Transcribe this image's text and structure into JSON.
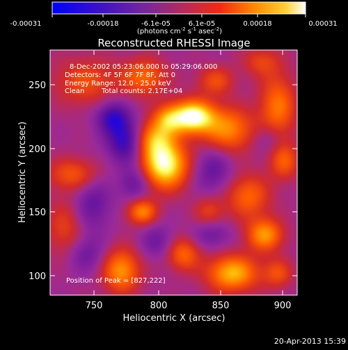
{
  "chart_data": {
    "type": "heatmap",
    "title": "Reconstructed RHESSI Image",
    "xlabel": "Heliocentric X (arcsec)",
    "ylabel": "Heliocentric Y (arcsec)",
    "xlim": [
      717,
      908
    ],
    "ylim": [
      83,
      274
    ],
    "x_ticks": [
      "750",
      "800",
      "850",
      "900"
    ],
    "y_ticks": [
      "100",
      "150",
      "200",
      "250"
    ],
    "colorbar": {
      "ticks": [
        "-0.00031",
        "-0.00018",
        "-6.1e-05",
        "6.1e-05",
        "0.00018",
        "0.00031"
      ],
      "range": [
        -0.00031,
        0.00031
      ],
      "label_main": "(photons cm",
      "label_exp1": "-2",
      "label_mid": " s",
      "label_exp2": "-1",
      "label_tail": " asec",
      "label_exp3": "-2",
      "label_close": ")",
      "colors": [
        "#0000ff",
        "#5a0fa0",
        "#9a2a9a",
        "#d22a2a",
        "#ff5a00",
        "#ffaa00",
        "#ffff60",
        "#ffffff"
      ]
    },
    "annotations": {
      "line1": "8-Dec-2002 05:23:06.000 to 05:29:06.000",
      "line2": "Detectors: 4F 5F 6F 7F 8F, Att 0",
      "line3": "Energy Range: 12.0 - 25.0 keV",
      "line4_a": "Clean",
      "line4_b": "Total counts: 2.17E+04",
      "peak": "Position of Peak = [827,222]"
    },
    "sources": [
      {
        "x": 827,
        "y": 222,
        "amp": 1.0,
        "sx": 12,
        "sy": 9
      },
      {
        "x": 806,
        "y": 185,
        "amp": 0.95,
        "sx": 12,
        "sy": 13
      },
      {
        "x": 797,
        "y": 205,
        "amp": 0.55,
        "sx": 10,
        "sy": 10
      },
      {
        "x": 808,
        "y": 220,
        "amp": 0.45,
        "sx": 8,
        "sy": 8
      },
      {
        "x": 790,
        "y": 253,
        "amp": 0.45,
        "sx": 12,
        "sy": 10
      },
      {
        "x": 745,
        "y": 249,
        "amp": 0.35,
        "sx": 18,
        "sy": 13
      },
      {
        "x": 735,
        "y": 177,
        "amp": 0.4,
        "sx": 14,
        "sy": 9
      },
      {
        "x": 728,
        "y": 135,
        "amp": 0.3,
        "sx": 10,
        "sy": 15
      },
      {
        "x": 788,
        "y": 148,
        "amp": 0.55,
        "sx": 8,
        "sy": 7
      },
      {
        "x": 772,
        "y": 102,
        "amp": 0.6,
        "sx": 10,
        "sy": 12
      },
      {
        "x": 820,
        "y": 115,
        "amp": 0.45,
        "sx": 9,
        "sy": 9
      },
      {
        "x": 858,
        "y": 100,
        "amp": 0.7,
        "sx": 14,
        "sy": 10
      },
      {
        "x": 893,
        "y": 100,
        "amp": 0.35,
        "sx": 8,
        "sy": 8
      },
      {
        "x": 883,
        "y": 130,
        "amp": 0.6,
        "sx": 10,
        "sy": 9
      },
      {
        "x": 870,
        "y": 160,
        "amp": 0.45,
        "sx": 12,
        "sy": 12
      },
      {
        "x": 855,
        "y": 212,
        "amp": 0.55,
        "sx": 14,
        "sy": 12
      },
      {
        "x": 893,
        "y": 230,
        "amp": 0.5,
        "sx": 10,
        "sy": 18
      },
      {
        "x": 845,
        "y": 250,
        "amp": 0.35,
        "sx": 10,
        "sy": 8
      },
      {
        "x": 880,
        "y": 265,
        "amp": 0.3,
        "sx": 10,
        "sy": 8
      },
      {
        "x": 898,
        "y": 187,
        "amp": 0.4,
        "sx": 8,
        "sy": 10
      },
      {
        "x": 840,
        "y": 148,
        "amp": 0.3,
        "sx": 8,
        "sy": 8
      },
      {
        "x": 775,
        "y": 203,
        "amp": -0.5,
        "sx": 10,
        "sy": 12
      },
      {
        "x": 765,
        "y": 222,
        "amp": -0.45,
        "sx": 9,
        "sy": 9
      },
      {
        "x": 782,
        "y": 170,
        "amp": -0.3,
        "sx": 8,
        "sy": 9
      },
      {
        "x": 750,
        "y": 155,
        "amp": -0.3,
        "sx": 10,
        "sy": 15
      },
      {
        "x": 843,
        "y": 180,
        "amp": -0.3,
        "sx": 10,
        "sy": 12
      },
      {
        "x": 842,
        "y": 130,
        "amp": -0.25,
        "sx": 10,
        "sy": 8
      },
      {
        "x": 800,
        "y": 125,
        "amp": -0.25,
        "sx": 9,
        "sy": 9
      },
      {
        "x": 745,
        "y": 115,
        "amp": -0.25,
        "sx": 10,
        "sy": 10
      },
      {
        "x": 885,
        "y": 205,
        "amp": -0.2,
        "sx": 8,
        "sy": 8
      }
    ]
  },
  "footer": {
    "date": "20-Apr-2013 15:39"
  }
}
